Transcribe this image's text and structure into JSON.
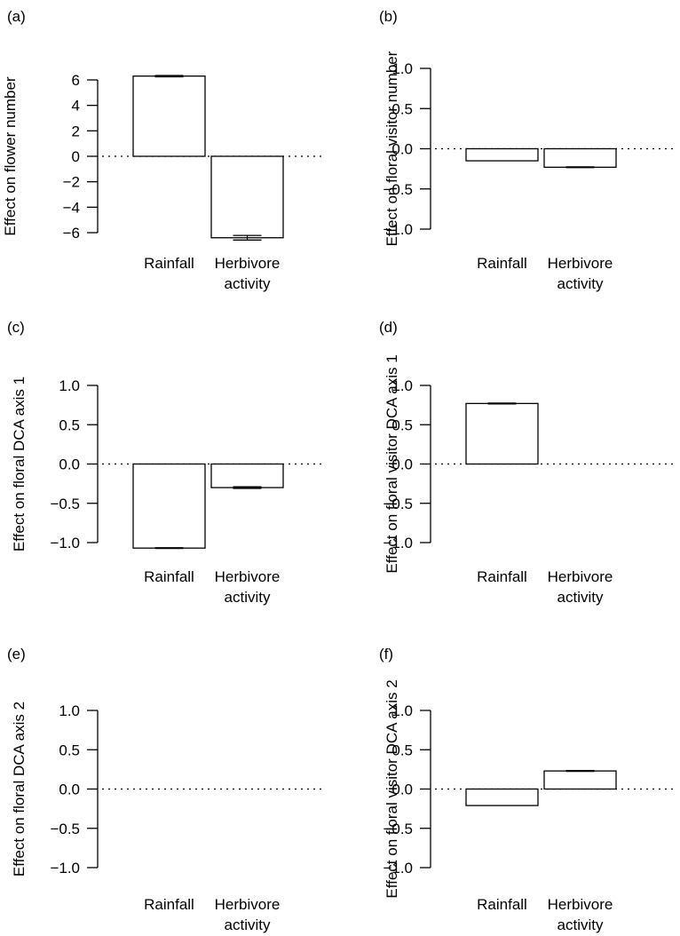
{
  "chart_data": [
    {
      "panel": "(a)",
      "type": "bar",
      "ylabel": "Effect on flower number",
      "categories": [
        "Rainfall",
        "Herbivore\nactivity"
      ],
      "values": [
        6.3,
        -6.4
      ],
      "errors": [
        0.05,
        0.18
      ],
      "ylim": [
        -6,
        6
      ],
      "yticks": [
        6,
        4,
        2,
        0,
        -2,
        -4,
        -6
      ],
      "ytick_labels": [
        "6",
        "4",
        "2",
        "0",
        "−2",
        "−4",
        "−6"
      ],
      "zero_line": "dotted"
    },
    {
      "panel": "(b)",
      "type": "bar",
      "ylabel": "Effect on floral visitor number",
      "categories": [
        "Rainfall",
        "Herbivore\nactivity"
      ],
      "values": [
        -0.15,
        -0.23
      ],
      "errors": [
        0,
        0.005
      ],
      "ylim": [
        -1.0,
        1.0
      ],
      "yticks": [
        1.0,
        0.5,
        0.0,
        -0.5,
        -1.0
      ],
      "ytick_labels": [
        "1.0",
        "0.5",
        "0.0",
        "−0.5",
        "−1.0"
      ],
      "zero_line": "dotted"
    },
    {
      "panel": "(c)",
      "type": "bar",
      "ylabel": "Effect on floral DCA axis 1",
      "categories": [
        "Rainfall",
        "Herbivore\nactivity"
      ],
      "values": [
        -1.07,
        -0.3
      ],
      "errors": [
        0.005,
        0.01
      ],
      "ylim": [
        -1.0,
        1.0
      ],
      "yticks": [
        1.0,
        0.5,
        0.0,
        -0.5,
        -1.0
      ],
      "ytick_labels": [
        "1.0",
        "0.5",
        "0.0",
        "−0.5",
        "−1.0"
      ],
      "zero_line": "dotted"
    },
    {
      "panel": "(d)",
      "type": "bar",
      "ylabel": "Effect on floral visitor DCA axis 1",
      "categories": [
        "Rainfall",
        "Herbivore\nactivity"
      ],
      "values": [
        0.77,
        0
      ],
      "errors": [
        0.005,
        0
      ],
      "ylim": [
        -1.0,
        1.0
      ],
      "yticks": [
        1.0,
        0.5,
        0.0,
        -0.5,
        -1.0
      ],
      "ytick_labels": [
        "1.0",
        "0.5",
        "0.0",
        "−0.5",
        "−1.0"
      ],
      "zero_line": "dotted"
    },
    {
      "panel": "(e)",
      "type": "bar",
      "ylabel": "Effect on floral DCA axis 2",
      "categories": [
        "Rainfall",
        "Herbivore\nactivity"
      ],
      "values": [
        0,
        0
      ],
      "errors": [
        0,
        0
      ],
      "ylim": [
        -1.0,
        1.0
      ],
      "yticks": [
        1.0,
        0.5,
        0.0,
        -0.5,
        -1.0
      ],
      "ytick_labels": [
        "1.0",
        "0.5",
        "0.0",
        "−0.5",
        "−1.0"
      ],
      "zero_line": "dotted"
    },
    {
      "panel": "(f)",
      "type": "bar",
      "ylabel": "Effect on floral visitor DCA axis 2",
      "categories": [
        "Rainfall",
        "Herbivore\nactivity"
      ],
      "values": [
        -0.21,
        0.23
      ],
      "errors": [
        0,
        0.005
      ],
      "ylim": [
        -1.0,
        1.0
      ],
      "yticks": [
        1.0,
        0.5,
        0.0,
        -0.5,
        -1.0
      ],
      "ytick_labels": [
        "1.0",
        "0.5",
        "0.0",
        "−0.5",
        "−1.0"
      ],
      "zero_line": "dotted"
    }
  ]
}
